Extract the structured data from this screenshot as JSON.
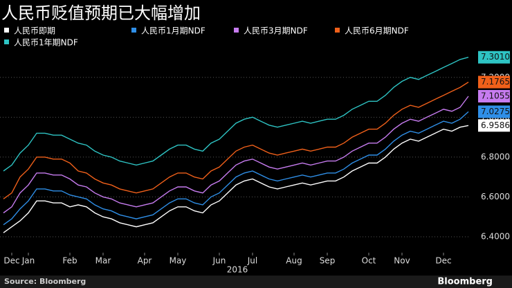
{
  "chart_data": {
    "type": "line",
    "title": "人民币贬值预期已大幅增加",
    "source": "Source: Bloomberg",
    "brand": "Bloomberg",
    "x_year_label": "2016",
    "categories": [
      null,
      "Dec",
      null,
      "Jan",
      null,
      null,
      null,
      null,
      "Feb",
      null,
      null,
      null,
      "Mar",
      null,
      null,
      null,
      null,
      "Apr",
      null,
      null,
      null,
      "May",
      null,
      null,
      null,
      null,
      "Jun",
      null,
      null,
      null,
      "Jul",
      null,
      null,
      null,
      null,
      "Aug",
      null,
      null,
      null,
      "Sep",
      null,
      null,
      null,
      null,
      "Oct",
      null,
      null,
      null,
      "Nov",
      null,
      null,
      null,
      null,
      "Dec",
      null,
      null,
      null
    ],
    "ylim": [
      6.32,
      7.38
    ],
    "yticks": [
      {
        "value": 6.4,
        "label": "6.4000"
      },
      {
        "value": 6.6,
        "label": "6.6000"
      },
      {
        "value": 6.8,
        "label": "6.8000"
      },
      {
        "value": 7.0,
        "label": "7.0000"
      },
      {
        "value": 7.2,
        "label": "7.2000"
      }
    ],
    "grid": true,
    "series": [
      {
        "name": "人民币即期",
        "color": "#ffffff",
        "end_label": "6.9586",
        "values": [
          6.42,
          6.45,
          6.48,
          6.52,
          6.58,
          6.58,
          6.57,
          6.57,
          6.55,
          6.56,
          6.55,
          6.52,
          6.5,
          6.49,
          6.47,
          6.46,
          6.45,
          6.46,
          6.47,
          6.5,
          6.53,
          6.55,
          6.55,
          6.53,
          6.52,
          6.56,
          6.58,
          6.62,
          6.66,
          6.68,
          6.69,
          6.67,
          6.65,
          6.64,
          6.65,
          6.66,
          6.67,
          6.66,
          6.67,
          6.68,
          6.68,
          6.7,
          6.73,
          6.75,
          6.77,
          6.77,
          6.8,
          6.84,
          6.87,
          6.89,
          6.88,
          6.9,
          6.92,
          6.94,
          6.93,
          6.95,
          6.9586
        ]
      },
      {
        "name": "人民币1月期NDF",
        "color": "#2f8fe8",
        "end_label": "7.0275",
        "values": [
          6.46,
          6.49,
          6.54,
          6.58,
          6.64,
          6.64,
          6.63,
          6.63,
          6.61,
          6.6,
          6.59,
          6.56,
          6.54,
          6.53,
          6.51,
          6.5,
          6.49,
          6.5,
          6.51,
          6.54,
          6.57,
          6.59,
          6.59,
          6.57,
          6.56,
          6.6,
          6.62,
          6.66,
          6.7,
          6.72,
          6.73,
          6.71,
          6.69,
          6.68,
          6.69,
          6.7,
          6.71,
          6.7,
          6.71,
          6.72,
          6.72,
          6.74,
          6.77,
          6.79,
          6.81,
          6.81,
          6.84,
          6.88,
          6.91,
          6.93,
          6.92,
          6.94,
          6.96,
          6.98,
          6.97,
          6.99,
          7.0275
        ]
      },
      {
        "name": "人民币3月期NDF",
        "color": "#c77cf0",
        "end_label": "7.1055",
        "values": [
          6.52,
          6.55,
          6.62,
          6.66,
          6.72,
          6.72,
          6.71,
          6.71,
          6.69,
          6.66,
          6.65,
          6.62,
          6.6,
          6.59,
          6.57,
          6.56,
          6.55,
          6.56,
          6.57,
          6.6,
          6.63,
          6.65,
          6.65,
          6.63,
          6.62,
          6.66,
          6.68,
          6.72,
          6.76,
          6.78,
          6.79,
          6.77,
          6.75,
          6.74,
          6.75,
          6.76,
          6.77,
          6.76,
          6.77,
          6.78,
          6.78,
          6.8,
          6.83,
          6.85,
          6.87,
          6.87,
          6.9,
          6.94,
          6.97,
          6.99,
          6.98,
          7.0,
          7.02,
          7.04,
          7.03,
          7.05,
          7.1055
        ]
      },
      {
        "name": "人民币6月期NDF",
        "color": "#f0601a",
        "end_label": "7.1765",
        "values": [
          6.59,
          6.62,
          6.7,
          6.74,
          6.8,
          6.8,
          6.79,
          6.79,
          6.77,
          6.73,
          6.72,
          6.69,
          6.67,
          6.66,
          6.64,
          6.63,
          6.62,
          6.63,
          6.64,
          6.67,
          6.7,
          6.72,
          6.72,
          6.7,
          6.69,
          6.73,
          6.75,
          6.79,
          6.83,
          6.85,
          6.86,
          6.84,
          6.82,
          6.81,
          6.82,
          6.83,
          6.84,
          6.83,
          6.84,
          6.85,
          6.85,
          6.87,
          6.9,
          6.92,
          6.94,
          6.94,
          6.97,
          7.01,
          7.04,
          7.06,
          7.05,
          7.07,
          7.09,
          7.11,
          7.13,
          7.15,
          7.1765
        ]
      },
      {
        "name": "人民币1年期NDF",
        "color": "#2ec4c4",
        "end_label": "7.3010",
        "values": [
          6.73,
          6.76,
          6.82,
          6.86,
          6.92,
          6.92,
          6.91,
          6.91,
          6.89,
          6.87,
          6.86,
          6.83,
          6.81,
          6.8,
          6.78,
          6.77,
          6.76,
          6.77,
          6.78,
          6.81,
          6.84,
          6.86,
          6.86,
          6.84,
          6.83,
          6.87,
          6.89,
          6.93,
          6.97,
          6.99,
          7.0,
          6.98,
          6.96,
          6.95,
          6.96,
          6.97,
          6.98,
          6.97,
          6.98,
          6.99,
          6.99,
          7.01,
          7.04,
          7.06,
          7.08,
          7.08,
          7.11,
          7.15,
          7.18,
          7.2,
          7.19,
          7.21,
          7.23,
          7.25,
          7.27,
          7.29,
          7.301
        ]
      }
    ]
  }
}
